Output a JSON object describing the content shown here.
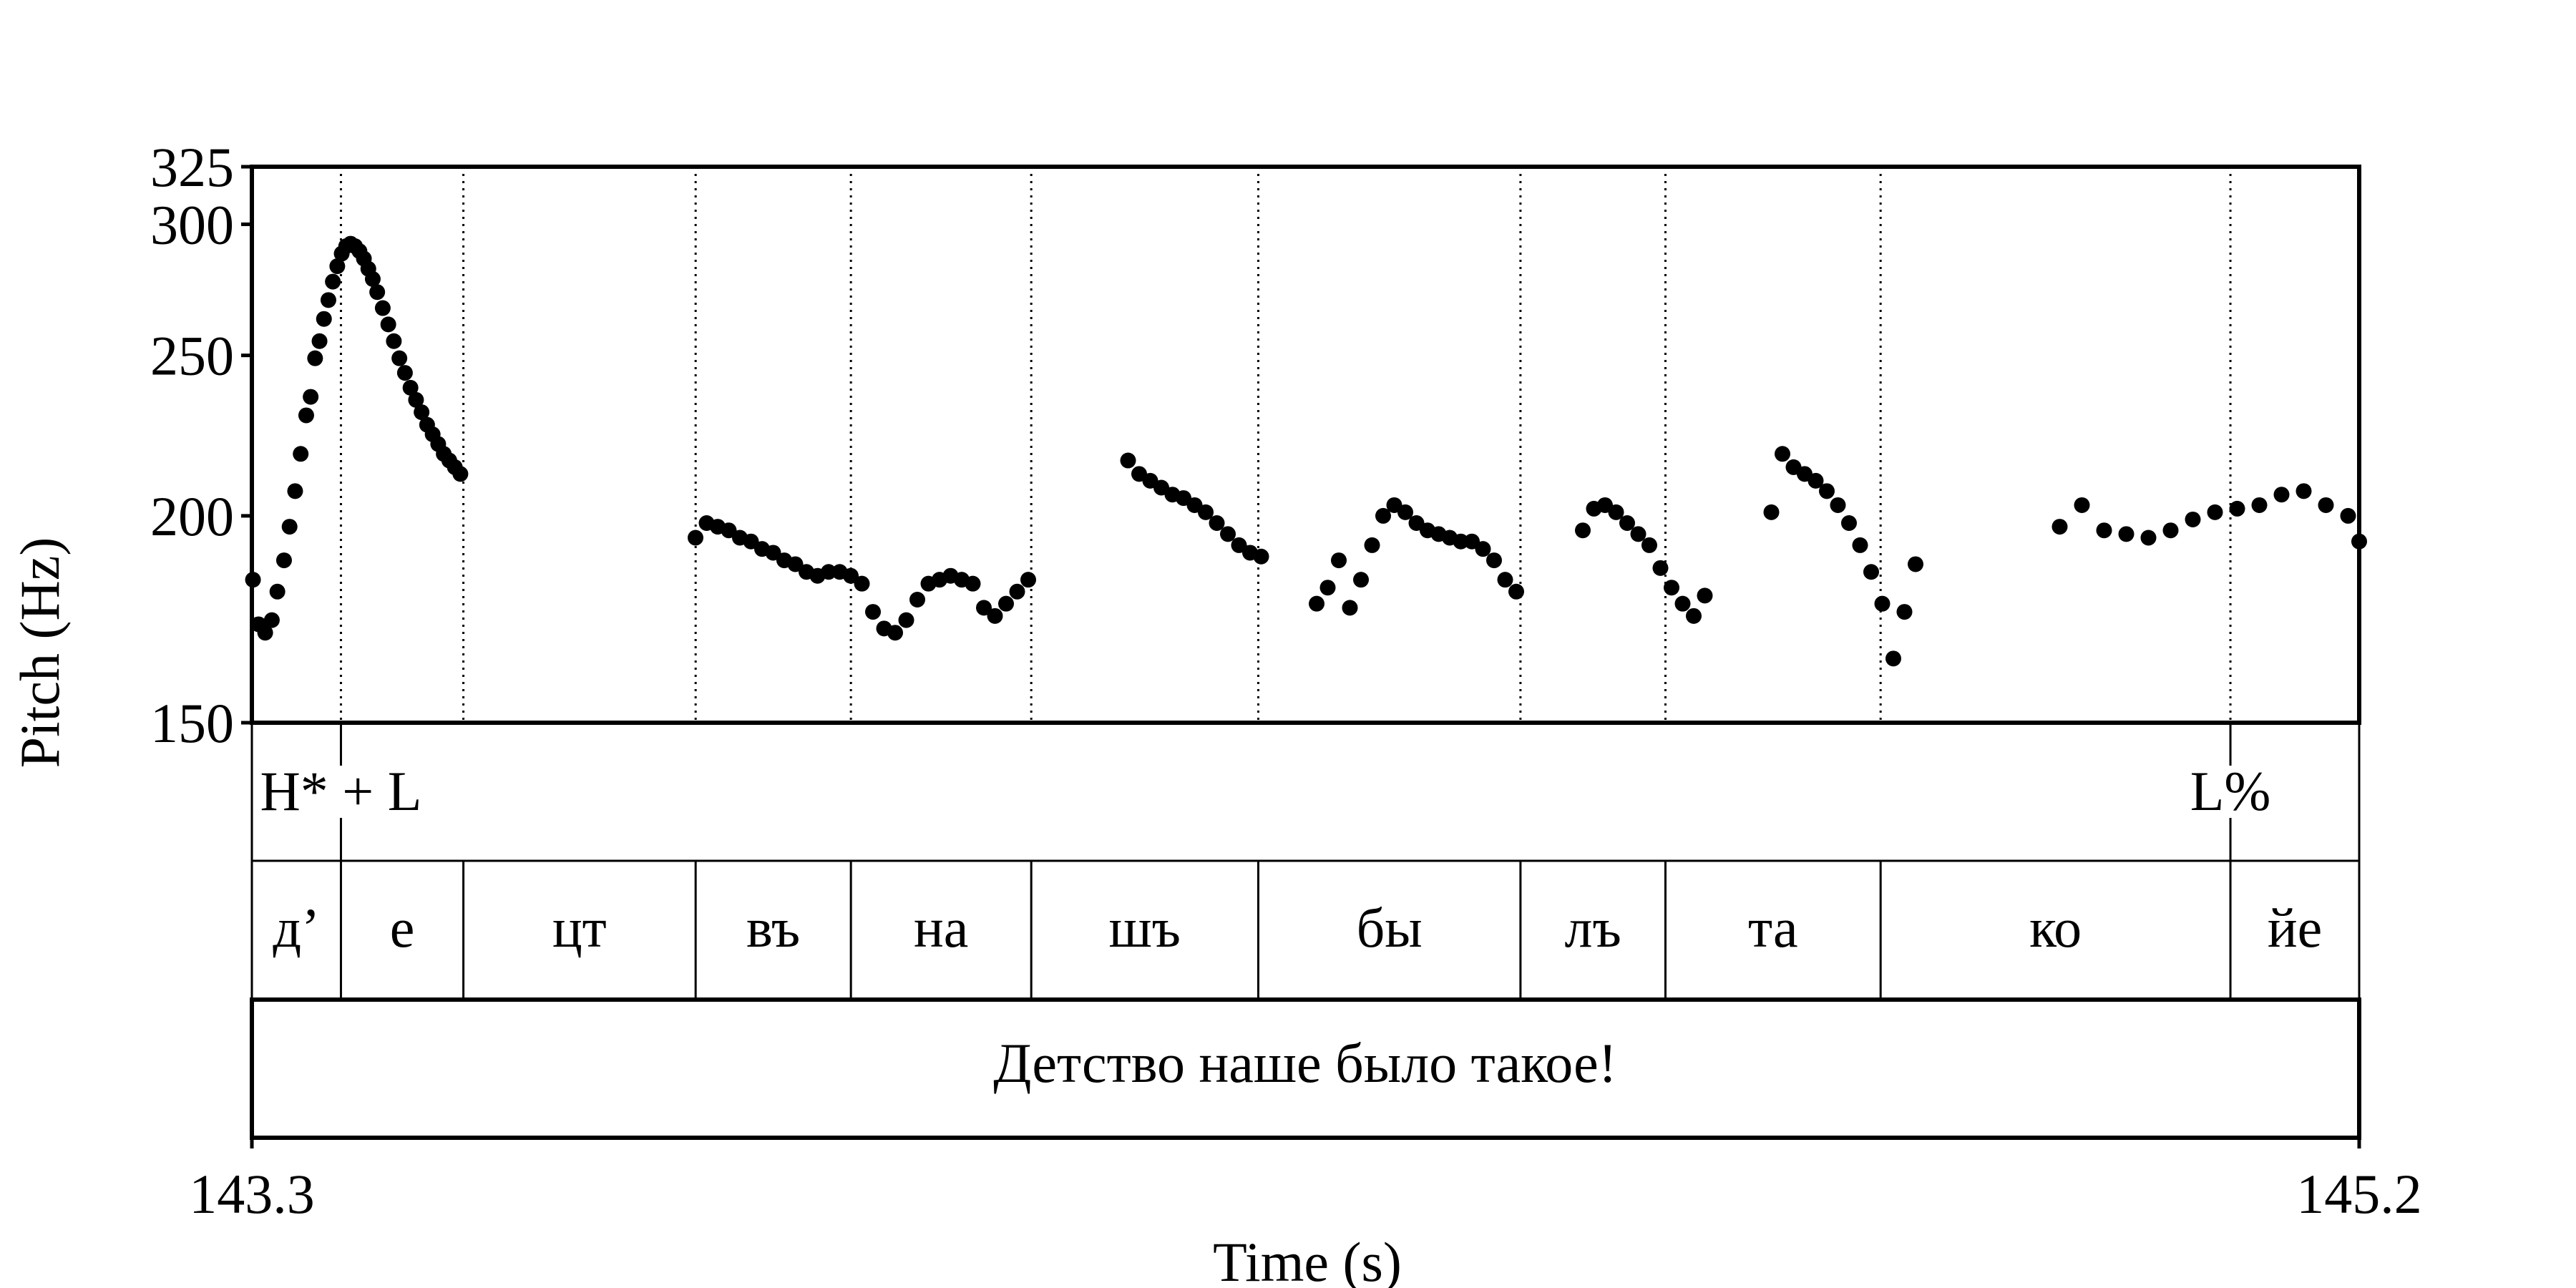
{
  "chart_data": {
    "type": "scatter",
    "xlabel": "Time (s)",
    "ylabel": "Pitch (Hz)",
    "xlim": [
      143.3,
      145.2
    ],
    "ylim": [
      150,
      325
    ],
    "scale": "log",
    "yticks": [
      150,
      200,
      250,
      300,
      325
    ],
    "xticks": [
      "143.3",
      "145.2"
    ],
    "grid": false,
    "boundaries": [
      143.3803,
      143.4907,
      143.7001,
      143.8401,
      144.0027,
      144.2074,
      144.4438,
      144.5745,
      144.7685,
      145.0839
    ],
    "tones": [
      {
        "time": 143.3803,
        "label": "H* + L"
      },
      {
        "time": 145.0839,
        "label": "L%"
      }
    ],
    "syllables": [
      {
        "start": 143.3,
        "end": 143.3803,
        "text": "д’"
      },
      {
        "start": 143.3803,
        "end": 143.4907,
        "text": "е"
      },
      {
        "start": 143.4907,
        "end": 143.7001,
        "text": "цт"
      },
      {
        "start": 143.7001,
        "end": 143.8401,
        "text": "въ"
      },
      {
        "start": 143.8401,
        "end": 144.0027,
        "text": "на"
      },
      {
        "start": 144.0027,
        "end": 144.2074,
        "text": "шъ"
      },
      {
        "start": 144.2074,
        "end": 144.4438,
        "text": "бы"
      },
      {
        "start": 144.4438,
        "end": 144.5745,
        "text": "лъ"
      },
      {
        "start": 144.5745,
        "end": 144.7685,
        "text": "та"
      },
      {
        "start": 144.7685,
        "end": 145.0839,
        "text": "ко"
      },
      {
        "start": 145.0839,
        "end": 145.2,
        "text": "йе"
      }
    ],
    "sentence": "Детство наше было такое!",
    "series": [
      {
        "x": [
          143.301,
          143.306,
          143.312,
          143.318,
          143.323,
          143.329,
          143.334,
          143.339,
          143.344,
          143.349,
          143.353,
          143.357,
          143.361,
          143.365,
          143.369,
          143.373,
          143.377,
          143.381,
          143.385,
          143.389,
          143.393,
          143.397,
          143.401,
          143.405,
          143.409,
          143.413,
          143.418,
          143.423,
          143.428,
          143.433,
          143.438,
          143.443,
          143.448,
          143.453,
          143.458,
          143.463,
          143.468,
          143.473,
          143.478,
          143.483,
          143.488
        ],
        "y": [
          183,
          172,
          170,
          173,
          180,
          188,
          197,
          207,
          218,
          230,
          236,
          249,
          255,
          263,
          270,
          277,
          283,
          288,
          291,
          292,
          291,
          289,
          286,
          282,
          278,
          273,
          267,
          261,
          255,
          249,
          244,
          239,
          235,
          231,
          227,
          224,
          221,
          218,
          216,
          214,
          212
        ]
      },
      {
        "x": [
          143.7,
          143.71,
          143.72,
          143.73,
          143.74,
          143.75,
          143.76,
          143.77,
          143.78,
          143.79,
          143.8,
          143.81,
          143.82,
          143.83,
          143.84,
          143.85,
          143.86,
          143.87,
          143.88,
          143.89,
          143.9,
          143.91,
          143.92,
          143.93,
          143.94,
          143.95,
          143.96,
          143.97,
          143.98,
          143.99,
          144.0
        ],
        "y": [
          194,
          198,
          197,
          196,
          194,
          193,
          191,
          190,
          188,
          187,
          185,
          184,
          185,
          185,
          184,
          182,
          175,
          171,
          170,
          173,
          178,
          182,
          183,
          184,
          183,
          182,
          176,
          174,
          177,
          180,
          183
        ]
      },
      {
        "x": [
          144.09,
          144.1,
          144.11,
          144.12,
          144.13,
          144.14,
          144.15,
          144.16,
          144.17,
          144.18,
          144.19,
          144.2,
          144.21
        ],
        "y": [
          216,
          212,
          210,
          208,
          206,
          205,
          203,
          201,
          198,
          195,
          192,
          190,
          189
        ]
      },
      {
        "x": [
          144.26,
          144.27,
          144.28,
          144.29,
          144.3,
          144.31,
          144.32,
          144.33,
          144.34,
          144.35,
          144.36,
          144.37,
          144.38,
          144.39,
          144.4,
          144.41,
          144.42,
          144.43,
          144.44
        ],
        "y": [
          177,
          181,
          188,
          176,
          183,
          192,
          200,
          203,
          201,
          198,
          196,
          195,
          194,
          193,
          193,
          191,
          188,
          183,
          180
        ]
      },
      {
        "x": [
          144.5,
          144.51,
          144.52,
          144.53,
          144.54,
          144.55,
          144.56,
          144.57,
          144.58,
          144.59,
          144.6,
          144.61
        ],
        "y": [
          196,
          202,
          203,
          201,
          198,
          195,
          192,
          186,
          181,
          177,
          174,
          179
        ]
      },
      {
        "x": [
          144.67,
          144.68,
          144.69,
          144.7,
          144.71,
          144.72,
          144.73,
          144.74,
          144.75,
          144.76,
          144.77,
          144.78,
          144.79,
          144.8
        ],
        "y": [
          201,
          218,
          214,
          212,
          210,
          207,
          203,
          198,
          192,
          185,
          177,
          164,
          175,
          187
        ]
      },
      {
        "x": [
          144.93,
          144.95,
          144.97,
          144.99,
          145.01,
          145.03,
          145.05,
          145.07,
          145.09,
          145.11,
          145.13,
          145.15,
          145.17,
          145.19,
          145.2
        ],
        "y": [
          197,
          203,
          196,
          195,
          194,
          196,
          199,
          201,
          202,
          203,
          206,
          207,
          203,
          200,
          193
        ]
      }
    ]
  }
}
